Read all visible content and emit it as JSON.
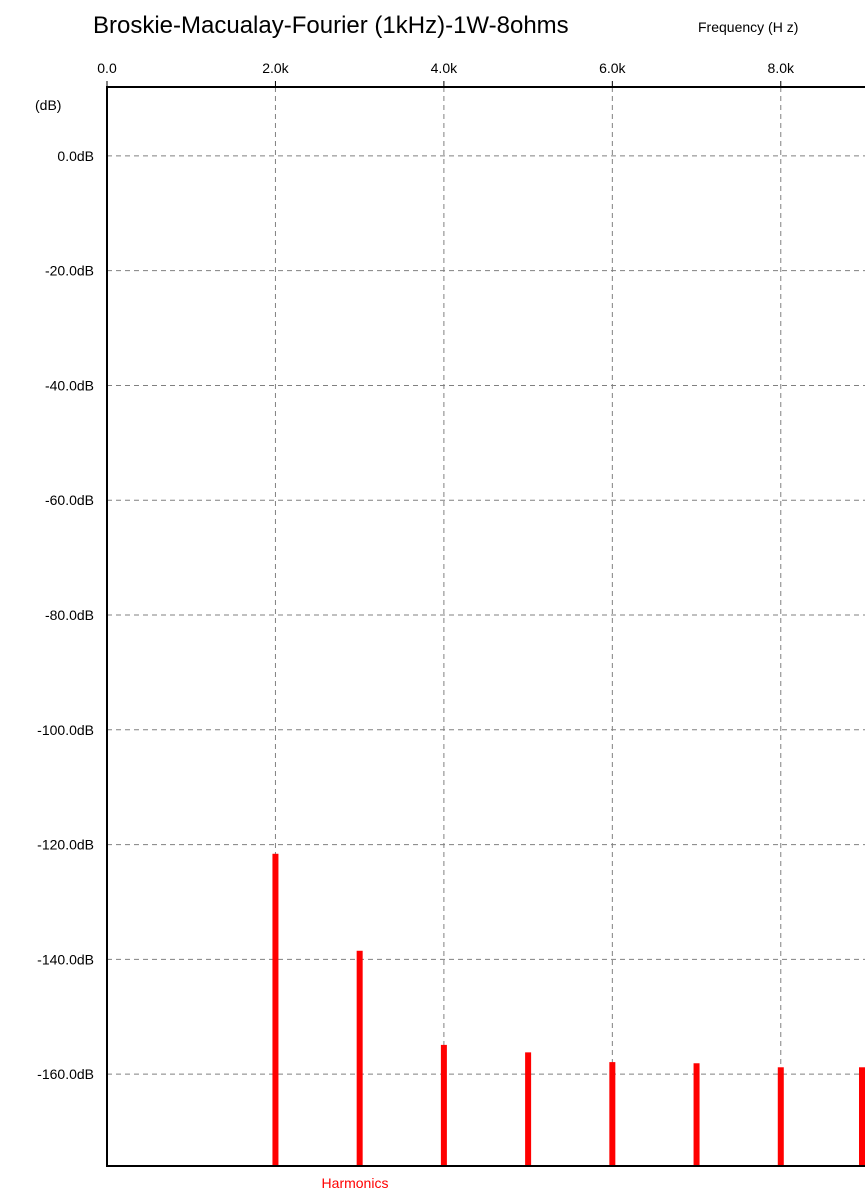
{
  "chart_data": {
    "type": "bar",
    "title": "Broskie-Macualay-Fourier (1kHz)-1W-8ohms",
    "xlabel": "Frequency  (H z)",
    "ylabel": "(dB)",
    "xlim": [
      0,
      9000
    ],
    "ylim": [
      -176,
      12
    ],
    "x_ticks": [
      {
        "value": 0,
        "label": "0.0"
      },
      {
        "value": 2000,
        "label": "2.0k"
      },
      {
        "value": 4000,
        "label": "4.0k"
      },
      {
        "value": 6000,
        "label": "6.0k"
      },
      {
        "value": 8000,
        "label": "8.0k"
      }
    ],
    "y_ticks": [
      {
        "value": 0,
        "label": "0.0dB"
      },
      {
        "value": -20,
        "label": "-20.0dB"
      },
      {
        "value": -40,
        "label": "-40.0dB"
      },
      {
        "value": -60,
        "label": "-60.0dB"
      },
      {
        "value": -80,
        "label": "-80.0dB"
      },
      {
        "value": -100,
        "label": "-100.0dB"
      },
      {
        "value": -120,
        "label": "-120.0dB"
      },
      {
        "value": -140,
        "label": "-140.0dB"
      },
      {
        "value": -160,
        "label": "-160.0dB"
      }
    ],
    "grid": true,
    "legend_position": "bottom",
    "series": [
      {
        "name": "Harmonics",
        "color": "#ff0000",
        "x": [
          2000,
          3000,
          4000,
          5000,
          6000,
          7000,
          8000,
          9000
        ],
        "values": [
          -121.6,
          -138.5,
          -154.9,
          -156.2,
          -157.9,
          -158.1,
          -158.8,
          -158.8
        ]
      }
    ]
  }
}
